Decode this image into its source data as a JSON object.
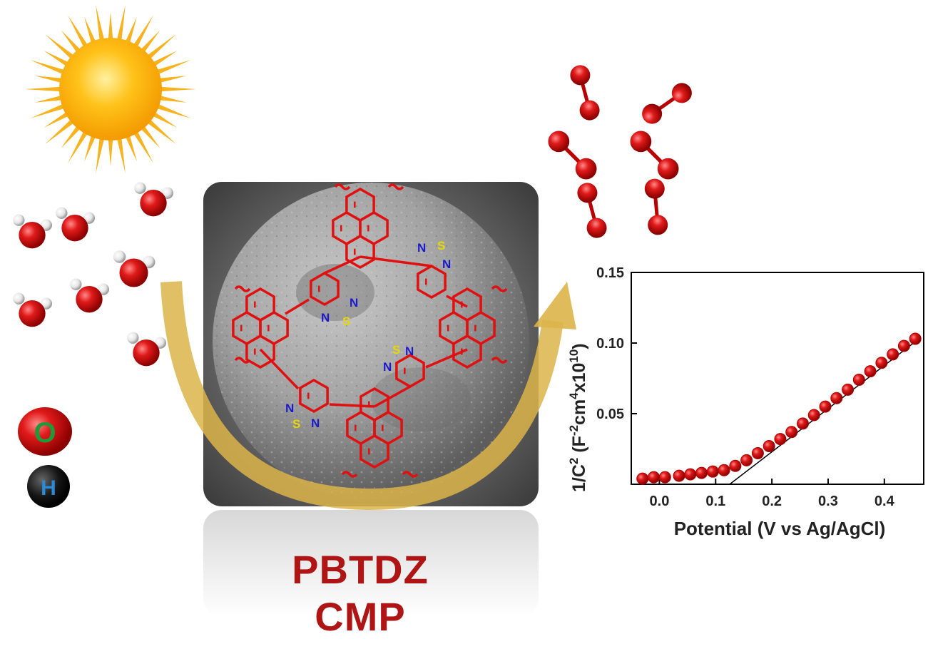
{
  "material": {
    "name_line1": "PBTDZ",
    "name_line2": "CMP"
  },
  "atom_legend": {
    "oxygen": "O",
    "hydrogen": "H"
  },
  "molecule_labels": {
    "sulfur": "S",
    "nitrogen": "N"
  },
  "colors": {
    "framework": "#e01010",
    "material_name": "#b01515",
    "oxygen_atom": "#d01818",
    "hydrogen_atom": "#f2f2f2",
    "nitrogen_label": "#1a1acc",
    "sulfur_label": "#e8d800",
    "arrow": "#dcb44a",
    "sun": "#f5a300",
    "data_points": "#e81010"
  },
  "icons": [
    "sun-icon",
    "water-molecule-icon",
    "oxygen-molecule-icon",
    "curved-arrow-icon"
  ],
  "chart_data": {
    "type": "scatter",
    "xlabel": "Potential (V vs Ag/AgCl)",
    "ylabel_parts": {
      "base": "1/C",
      "sup1": "2",
      "paren_open": " (F",
      "sup2": "-2",
      "unit": "cm",
      "sup3": "4",
      "times": "x10",
      "sup4": "10",
      "paren_close": ")"
    },
    "xlim": [
      -0.05,
      0.47
    ],
    "ylim": [
      0.0,
      0.15
    ],
    "xticks": [
      0.0,
      0.1,
      0.2,
      0.3,
      0.4
    ],
    "xtick_labels": [
      "0.0",
      "0.1",
      "0.2",
      "0.3",
      "0.4"
    ],
    "yticks": [
      0.05,
      0.1,
      0.15
    ],
    "ytick_labels": [
      "0.05",
      "0.10",
      "0.15"
    ],
    "series": [
      {
        "x": [
          -0.03,
          -0.01,
          0.01,
          0.035,
          0.055,
          0.075,
          0.095,
          0.115,
          0.135,
          0.155,
          0.175,
          0.195,
          0.215,
          0.235,
          0.255,
          0.275,
          0.295,
          0.315,
          0.335,
          0.355,
          0.375,
          0.395,
          0.415,
          0.435,
          0.455
        ],
        "y": [
          0.004,
          0.005,
          0.005,
          0.006,
          0.007,
          0.008,
          0.009,
          0.01,
          0.013,
          0.017,
          0.022,
          0.027,
          0.032,
          0.037,
          0.043,
          0.049,
          0.055,
          0.061,
          0.067,
          0.074,
          0.08,
          0.086,
          0.092,
          0.098,
          0.103
        ]
      }
    ],
    "fit_line": {
      "x": [
        0.125,
        0.465
      ],
      "y": [
        0.0,
        0.104
      ]
    }
  }
}
